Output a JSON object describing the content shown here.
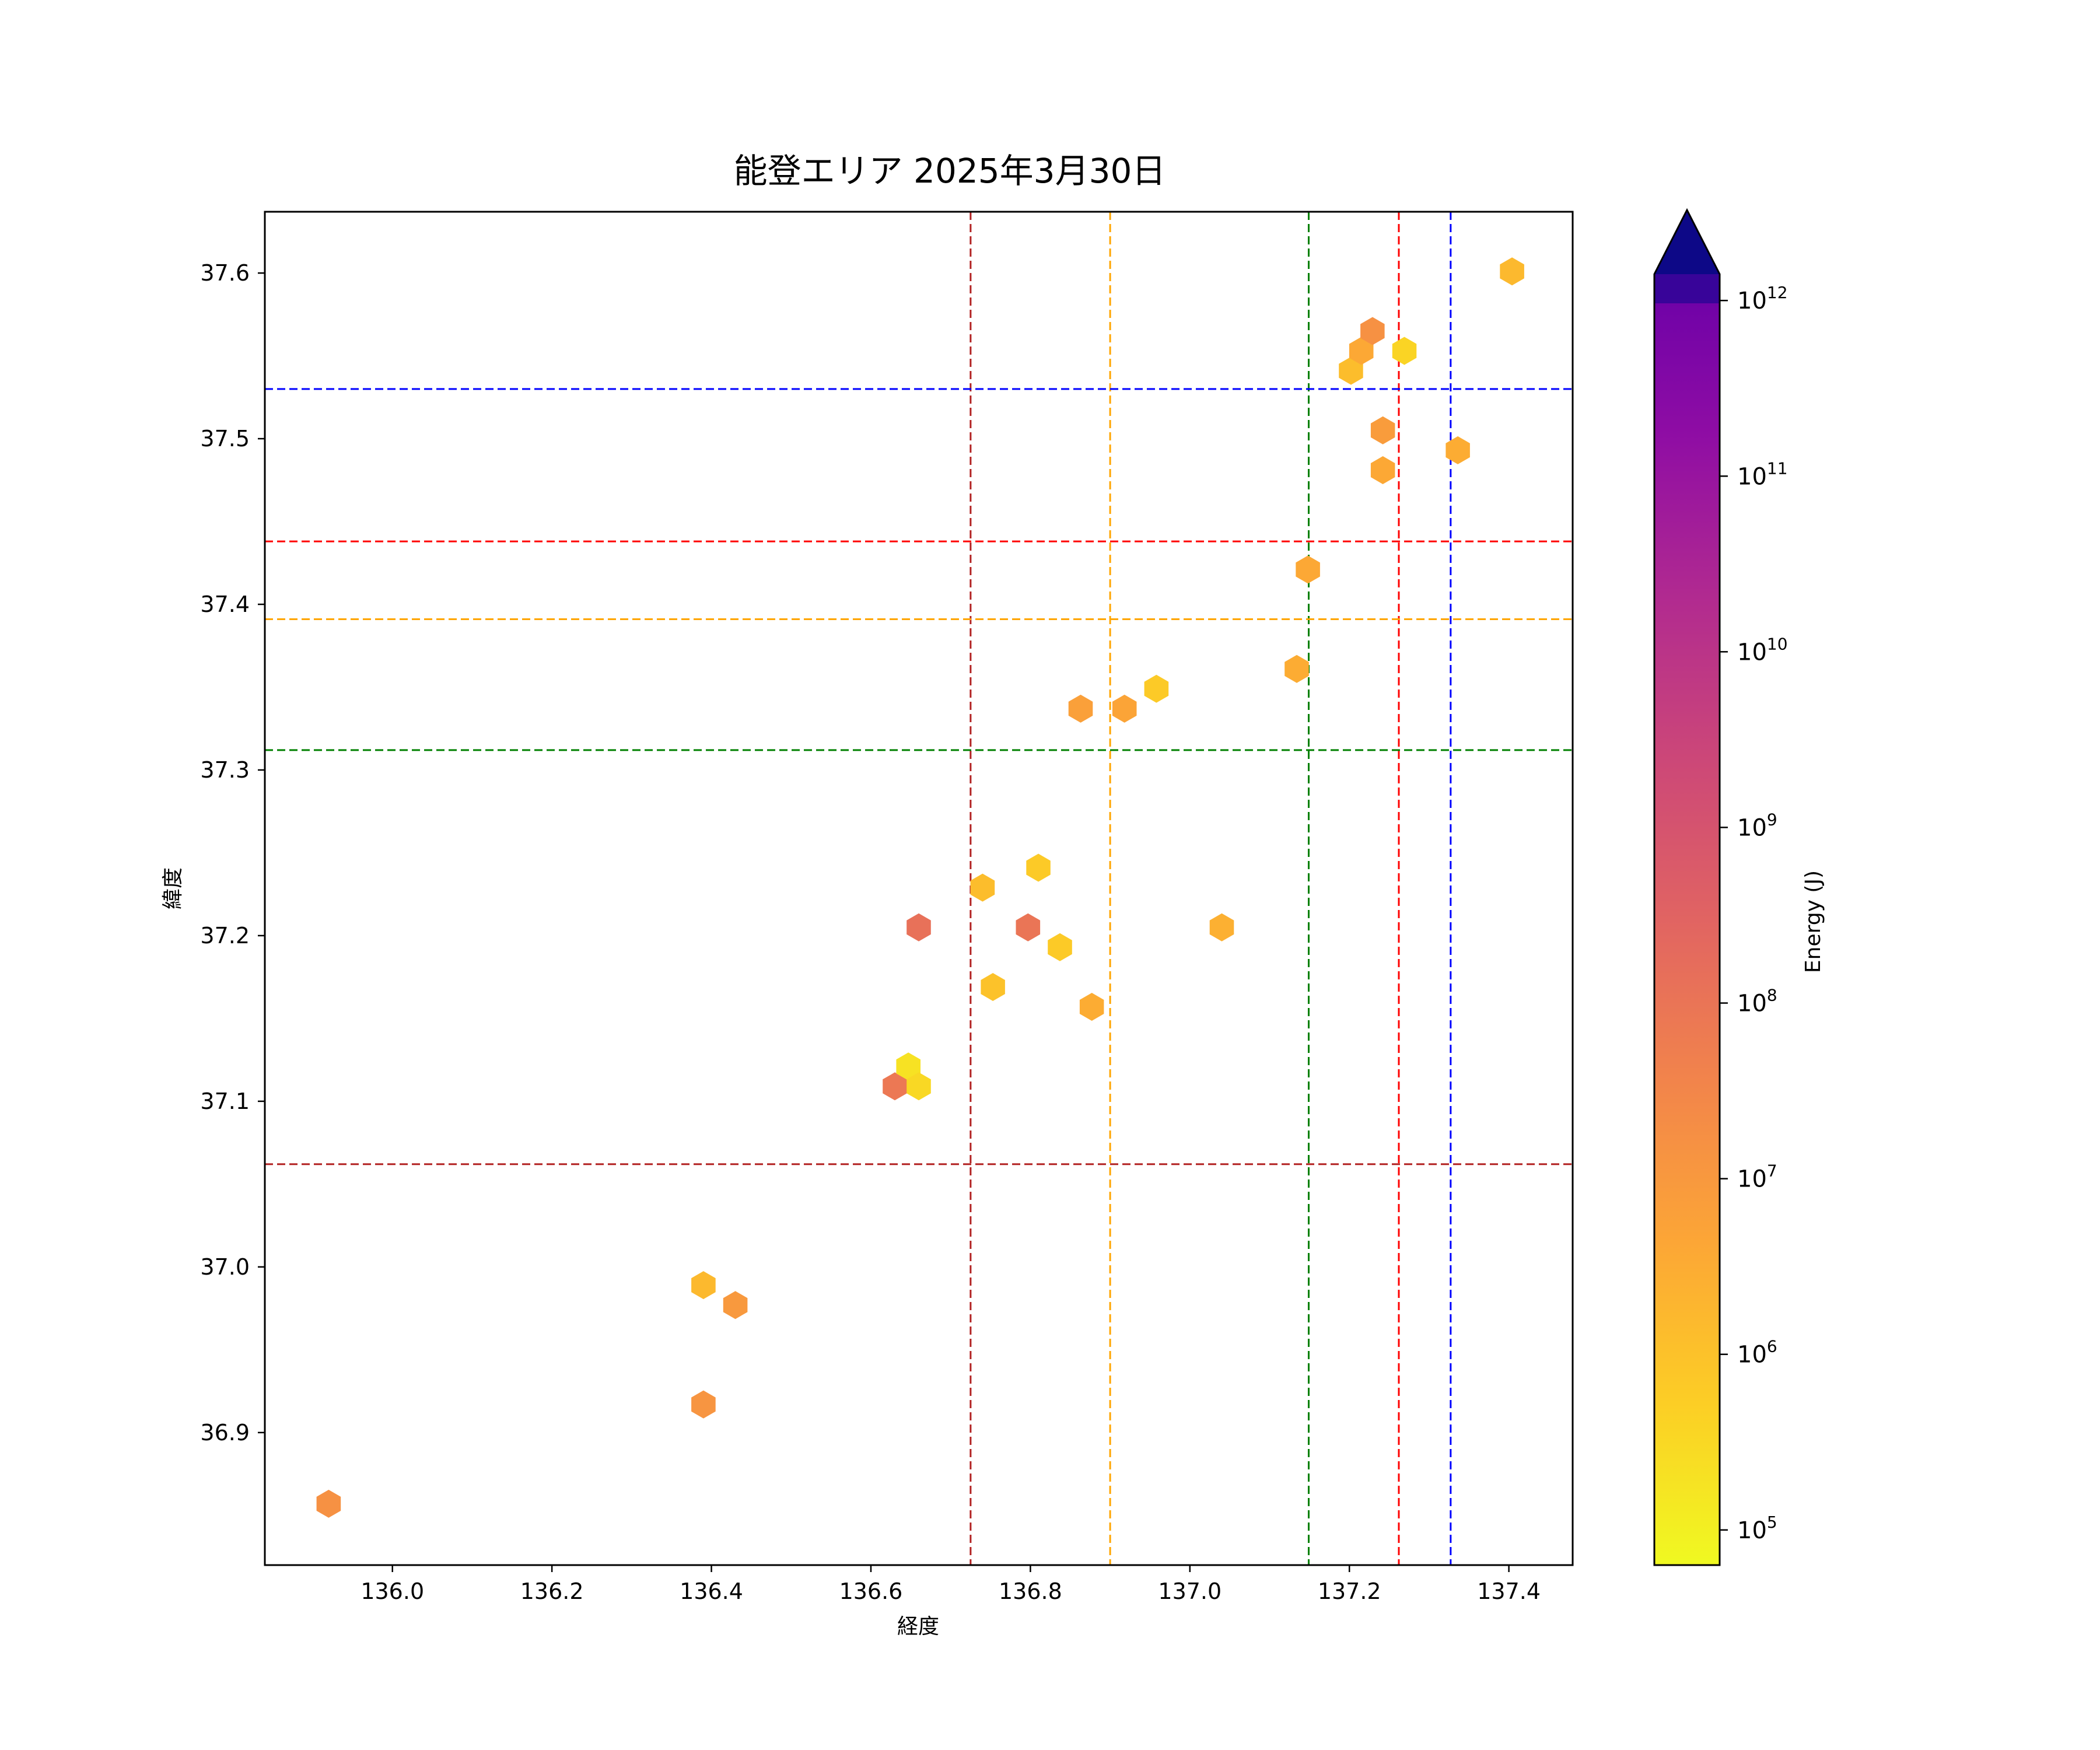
{
  "chart_data": {
    "type": "hexbin",
    "title": "能登エリア 2025年3月30日",
    "xlabel": "経度",
    "ylabel": "緯度",
    "xlim": [
      135.84,
      137.48
    ],
    "ylim": [
      36.82,
      37.637
    ],
    "xticks": [
      {
        "value": 136.0,
        "label": "136.0"
      },
      {
        "value": 136.2,
        "label": "136.2"
      },
      {
        "value": 136.4,
        "label": "136.4"
      },
      {
        "value": 136.6,
        "label": "136.6"
      },
      {
        "value": 136.8,
        "label": "136.8"
      },
      {
        "value": 137.0,
        "label": "137.0"
      },
      {
        "value": 137.2,
        "label": "137.2"
      },
      {
        "value": 137.4,
        "label": "137.4"
      }
    ],
    "yticks": [
      {
        "value": 36.9,
        "label": "36.9"
      },
      {
        "value": 37.0,
        "label": "37.0"
      },
      {
        "value": 37.1,
        "label": "37.1"
      },
      {
        "value": 37.2,
        "label": "37.2"
      },
      {
        "value": 37.3,
        "label": "37.3"
      },
      {
        "value": 37.4,
        "label": "37.4"
      },
      {
        "value": 37.5,
        "label": "37.5"
      },
      {
        "value": 37.6,
        "label": "37.6"
      }
    ],
    "colorbar": {
      "label": "Energy (J)",
      "scale": "log",
      "colormap": "plasma_r",
      "range_log10": [
        4.8,
        12.15
      ],
      "extend": "max",
      "ticks": [
        {
          "exp": 5,
          "base": "10",
          "sup": "5"
        },
        {
          "exp": 6,
          "base": "10",
          "sup": "6"
        },
        {
          "exp": 7,
          "base": "10",
          "sup": "7"
        },
        {
          "exp": 8,
          "base": "10",
          "sup": "8"
        },
        {
          "exp": 9,
          "base": "10",
          "sup": "9"
        },
        {
          "exp": 10,
          "base": "10",
          "sup": "10"
        },
        {
          "exp": 11,
          "base": "10",
          "sup": "11"
        },
        {
          "exp": 12,
          "base": "10",
          "sup": "12"
        }
      ]
    },
    "vlines": [
      {
        "x": 136.725,
        "color": "#b22222"
      },
      {
        "x": 136.9,
        "color": "#ffa500"
      },
      {
        "x": 137.149,
        "color": "#008000"
      },
      {
        "x": 137.262,
        "color": "#ff0000"
      },
      {
        "x": 137.327,
        "color": "#0000ff"
      }
    ],
    "hlines": [
      {
        "y": 37.53,
        "color": "#0000ff"
      },
      {
        "y": 37.438,
        "color": "#ff0000"
      },
      {
        "y": 37.391,
        "color": "#ffa500"
      },
      {
        "y": 37.312,
        "color": "#008000"
      },
      {
        "y": 37.062,
        "color": "#b22222"
      }
    ],
    "points": [
      {
        "x": 135.92,
        "y": 36.857,
        "log_energy": 7.2
      },
      {
        "x": 136.39,
        "y": 36.917,
        "log_energy": 7.1
      },
      {
        "x": 136.39,
        "y": 36.989,
        "log_energy": 6.2
      },
      {
        "x": 136.43,
        "y": 36.977,
        "log_energy": 7.0
      },
      {
        "x": 136.63,
        "y": 37.109,
        "log_energy": 7.9
      },
      {
        "x": 136.647,
        "y": 37.121,
        "log_energy": 5.3
      },
      {
        "x": 136.66,
        "y": 37.109,
        "log_energy": 5.5
      },
      {
        "x": 136.66,
        "y": 37.205,
        "log_energy": 8.1
      },
      {
        "x": 136.74,
        "y": 37.229,
        "log_energy": 6.1
      },
      {
        "x": 136.753,
        "y": 37.169,
        "log_energy": 6.0
      },
      {
        "x": 136.797,
        "y": 37.205,
        "log_energy": 8.0
      },
      {
        "x": 136.81,
        "y": 37.241,
        "log_energy": 5.8
      },
      {
        "x": 136.837,
        "y": 37.193,
        "log_energy": 5.8
      },
      {
        "x": 136.877,
        "y": 37.157,
        "log_energy": 6.5
      },
      {
        "x": 136.863,
        "y": 37.337,
        "log_energy": 6.8
      },
      {
        "x": 136.918,
        "y": 37.337,
        "log_energy": 6.7
      },
      {
        "x": 136.958,
        "y": 37.349,
        "log_energy": 5.8
      },
      {
        "x": 137.04,
        "y": 37.205,
        "log_energy": 6.4
      },
      {
        "x": 137.134,
        "y": 37.361,
        "log_energy": 6.5
      },
      {
        "x": 137.148,
        "y": 37.421,
        "log_energy": 6.6
      },
      {
        "x": 137.202,
        "y": 37.541,
        "log_energy": 6.1
      },
      {
        "x": 137.215,
        "y": 37.553,
        "log_energy": 6.6
      },
      {
        "x": 137.229,
        "y": 37.565,
        "log_energy": 7.2
      },
      {
        "x": 137.269,
        "y": 37.553,
        "log_energy": 5.6
      },
      {
        "x": 137.242,
        "y": 37.505,
        "log_energy": 6.9
      },
      {
        "x": 137.242,
        "y": 37.481,
        "log_energy": 6.6
      },
      {
        "x": 137.336,
        "y": 37.493,
        "log_energy": 6.5
      },
      {
        "x": 137.404,
        "y": 37.601,
        "log_energy": 6.2
      }
    ]
  }
}
